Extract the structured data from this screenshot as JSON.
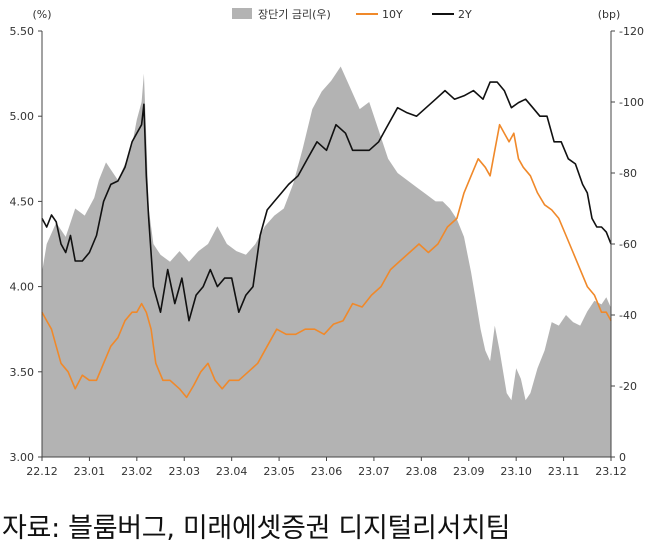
{
  "chart_data": {
    "type": "line",
    "units_left": "(%)",
    "units_right": "(bp)",
    "left_axis": {
      "ylim": [
        3.0,
        5.5
      ],
      "ticks": [
        "3.00",
        "3.50",
        "4.00",
        "4.50",
        "5.00",
        "5.50"
      ]
    },
    "right_axis": {
      "ylim": [
        0,
        -120
      ],
      "inverted": true,
      "ticks": [
        "0",
        "-20",
        "-40",
        "-60",
        "-80",
        "-100",
        "-120"
      ]
    },
    "x_ticks": [
      "22.12",
      "23.01",
      "23.02",
      "23.03",
      "23.04",
      "23.05",
      "23.06",
      "23.07",
      "23.08",
      "23.09",
      "23.10",
      "23.11",
      "23.12"
    ],
    "legend": {
      "placement": "top-center"
    },
    "colors": {
      "spread": "#b3b3b3",
      "y10": "#f0892a",
      "y2": "#111111"
    },
    "series": [
      {
        "name": "장단기 금리(우)",
        "axis": "right",
        "kind": "area",
        "points": [
          [
            0.0,
            -52
          ],
          [
            0.1,
            -60
          ],
          [
            0.3,
            -66
          ],
          [
            0.5,
            -62
          ],
          [
            0.7,
            -70
          ],
          [
            0.9,
            -68
          ],
          [
            1.1,
            -73
          ],
          [
            1.2,
            -78
          ],
          [
            1.35,
            -83
          ],
          [
            1.5,
            -80
          ],
          [
            1.6,
            -78
          ],
          [
            1.8,
            -84
          ],
          [
            1.9,
            -88
          ],
          [
            2.0,
            -95
          ],
          [
            2.1,
            -100
          ],
          [
            2.15,
            -108
          ],
          [
            2.2,
            -90
          ],
          [
            2.25,
            -70
          ],
          [
            2.35,
            -60
          ],
          [
            2.5,
            -57
          ],
          [
            2.7,
            -55
          ],
          [
            2.9,
            -58
          ],
          [
            3.1,
            -55
          ],
          [
            3.3,
            -58
          ],
          [
            3.5,
            -60
          ],
          [
            3.7,
            -65
          ],
          [
            3.9,
            -60
          ],
          [
            4.1,
            -58
          ],
          [
            4.3,
            -57
          ],
          [
            4.5,
            -60
          ],
          [
            4.7,
            -65
          ],
          [
            4.9,
            -68
          ],
          [
            5.1,
            -70
          ],
          [
            5.3,
            -77
          ],
          [
            5.5,
            -87
          ],
          [
            5.7,
            -98
          ],
          [
            5.9,
            -103
          ],
          [
            6.1,
            -106
          ],
          [
            6.3,
            -110
          ],
          [
            6.5,
            -104
          ],
          [
            6.7,
            -98
          ],
          [
            6.9,
            -100
          ],
          [
            7.1,
            -92
          ],
          [
            7.3,
            -84
          ],
          [
            7.5,
            -80
          ],
          [
            7.7,
            -78
          ],
          [
            7.9,
            -76
          ],
          [
            8.1,
            -74
          ],
          [
            8.3,
            -72
          ],
          [
            8.45,
            -72
          ],
          [
            8.6,
            -70
          ],
          [
            8.75,
            -67
          ],
          [
            8.9,
            -62
          ],
          [
            9.05,
            -52
          ],
          [
            9.15,
            -44
          ],
          [
            9.25,
            -36
          ],
          [
            9.35,
            -30
          ],
          [
            9.45,
            -27
          ],
          [
            9.55,
            -37
          ],
          [
            9.65,
            -30
          ],
          [
            9.8,
            -18
          ],
          [
            9.9,
            -16
          ],
          [
            10.0,
            -25
          ],
          [
            10.1,
            -22
          ],
          [
            10.2,
            -16
          ],
          [
            10.3,
            -18
          ],
          [
            10.45,
            -25
          ],
          [
            10.6,
            -30
          ],
          [
            10.75,
            -38
          ],
          [
            10.9,
            -37
          ],
          [
            11.05,
            -40
          ],
          [
            11.2,
            -38
          ],
          [
            11.35,
            -37
          ],
          [
            11.5,
            -41
          ],
          [
            11.65,
            -44
          ],
          [
            11.8,
            -43
          ],
          [
            11.9,
            -45
          ],
          [
            12.0,
            -42
          ]
        ]
      },
      {
        "name": "10Y",
        "axis": "left",
        "kind": "line",
        "points": [
          [
            0.0,
            3.85
          ],
          [
            0.1,
            3.8
          ],
          [
            0.2,
            3.75
          ],
          [
            0.3,
            3.65
          ],
          [
            0.4,
            3.55
          ],
          [
            0.55,
            3.5
          ],
          [
            0.7,
            3.4
          ],
          [
            0.85,
            3.48
          ],
          [
            1.0,
            3.45
          ],
          [
            1.15,
            3.45
          ],
          [
            1.3,
            3.55
          ],
          [
            1.45,
            3.65
          ],
          [
            1.6,
            3.7
          ],
          [
            1.75,
            3.8
          ],
          [
            1.9,
            3.85
          ],
          [
            2.0,
            3.85
          ],
          [
            2.1,
            3.9
          ],
          [
            2.2,
            3.85
          ],
          [
            2.3,
            3.75
          ],
          [
            2.4,
            3.55
          ],
          [
            2.55,
            3.45
          ],
          [
            2.7,
            3.45
          ],
          [
            2.9,
            3.4
          ],
          [
            3.05,
            3.35
          ],
          [
            3.2,
            3.42
          ],
          [
            3.35,
            3.5
          ],
          [
            3.5,
            3.55
          ],
          [
            3.65,
            3.45
          ],
          [
            3.8,
            3.4
          ],
          [
            3.95,
            3.45
          ],
          [
            4.15,
            3.45
          ],
          [
            4.35,
            3.5
          ],
          [
            4.55,
            3.55
          ],
          [
            4.75,
            3.65
          ],
          [
            4.95,
            3.75
          ],
          [
            5.15,
            3.72
          ],
          [
            5.35,
            3.72
          ],
          [
            5.55,
            3.75
          ],
          [
            5.75,
            3.75
          ],
          [
            5.95,
            3.72
          ],
          [
            6.15,
            3.78
          ],
          [
            6.35,
            3.8
          ],
          [
            6.55,
            3.9
          ],
          [
            6.75,
            3.88
          ],
          [
            6.95,
            3.95
          ],
          [
            7.15,
            4.0
          ],
          [
            7.35,
            4.1
          ],
          [
            7.55,
            4.15
          ],
          [
            7.75,
            4.2
          ],
          [
            7.95,
            4.25
          ],
          [
            8.15,
            4.2
          ],
          [
            8.35,
            4.25
          ],
          [
            8.55,
            4.35
          ],
          [
            8.75,
            4.4
          ],
          [
            8.9,
            4.55
          ],
          [
            9.05,
            4.65
          ],
          [
            9.2,
            4.75
          ],
          [
            9.35,
            4.7
          ],
          [
            9.45,
            4.65
          ],
          [
            9.55,
            4.8
          ],
          [
            9.65,
            4.95
          ],
          [
            9.75,
            4.9
          ],
          [
            9.85,
            4.85
          ],
          [
            9.95,
            4.9
          ],
          [
            10.05,
            4.75
          ],
          [
            10.15,
            4.7
          ],
          [
            10.3,
            4.65
          ],
          [
            10.45,
            4.55
          ],
          [
            10.6,
            4.48
          ],
          [
            10.75,
            4.45
          ],
          [
            10.9,
            4.4
          ],
          [
            11.05,
            4.3
          ],
          [
            11.2,
            4.2
          ],
          [
            11.35,
            4.1
          ],
          [
            11.5,
            4.0
          ],
          [
            11.65,
            3.95
          ],
          [
            11.8,
            3.85
          ],
          [
            11.9,
            3.85
          ],
          [
            12.0,
            3.8
          ]
        ]
      },
      {
        "name": "2Y",
        "axis": "left",
        "kind": "line",
        "points": [
          [
            0.0,
            4.4
          ],
          [
            0.1,
            4.35
          ],
          [
            0.2,
            4.42
          ],
          [
            0.3,
            4.38
          ],
          [
            0.4,
            4.25
          ],
          [
            0.5,
            4.2
          ],
          [
            0.6,
            4.3
          ],
          [
            0.7,
            4.15
          ],
          [
            0.85,
            4.15
          ],
          [
            1.0,
            4.2
          ],
          [
            1.15,
            4.3
          ],
          [
            1.3,
            4.5
          ],
          [
            1.45,
            4.6
          ],
          [
            1.6,
            4.62
          ],
          [
            1.75,
            4.7
          ],
          [
            1.9,
            4.85
          ],
          [
            2.0,
            4.9
          ],
          [
            2.1,
            4.95
          ],
          [
            2.15,
            5.07
          ],
          [
            2.2,
            4.65
          ],
          [
            2.25,
            4.4
          ],
          [
            2.35,
            4.0
          ],
          [
            2.5,
            3.85
          ],
          [
            2.65,
            4.1
          ],
          [
            2.8,
            3.9
          ],
          [
            2.95,
            4.05
          ],
          [
            3.1,
            3.8
          ],
          [
            3.25,
            3.95
          ],
          [
            3.4,
            4.0
          ],
          [
            3.55,
            4.1
          ],
          [
            3.7,
            4.0
          ],
          [
            3.85,
            4.05
          ],
          [
            4.0,
            4.05
          ],
          [
            4.15,
            3.85
          ],
          [
            4.3,
            3.95
          ],
          [
            4.45,
            4.0
          ],
          [
            4.6,
            4.3
          ],
          [
            4.75,
            4.45
          ],
          [
            4.9,
            4.5
          ],
          [
            5.05,
            4.55
          ],
          [
            5.2,
            4.6
          ],
          [
            5.4,
            4.65
          ],
          [
            5.6,
            4.75
          ],
          [
            5.8,
            4.85
          ],
          [
            6.0,
            4.8
          ],
          [
            6.2,
            4.95
          ],
          [
            6.4,
            4.9
          ],
          [
            6.55,
            4.8
          ],
          [
            6.7,
            4.8
          ],
          [
            6.9,
            4.8
          ],
          [
            7.1,
            4.85
          ],
          [
            7.3,
            4.95
          ],
          [
            7.5,
            5.05
          ],
          [
            7.7,
            5.02
          ],
          [
            7.9,
            5.0
          ],
          [
            8.1,
            5.05
          ],
          [
            8.3,
            5.1
          ],
          [
            8.5,
            5.15
          ],
          [
            8.7,
            5.1
          ],
          [
            8.9,
            5.12
          ],
          [
            9.1,
            5.15
          ],
          [
            9.3,
            5.1
          ],
          [
            9.45,
            5.2
          ],
          [
            9.6,
            5.2
          ],
          [
            9.75,
            5.15
          ],
          [
            9.9,
            5.05
          ],
          [
            10.05,
            5.08
          ],
          [
            10.2,
            5.1
          ],
          [
            10.35,
            5.05
          ],
          [
            10.5,
            5.0
          ],
          [
            10.65,
            5.0
          ],
          [
            10.8,
            4.85
          ],
          [
            10.95,
            4.85
          ],
          [
            11.1,
            4.75
          ],
          [
            11.25,
            4.72
          ],
          [
            11.4,
            4.6
          ],
          [
            11.5,
            4.55
          ],
          [
            11.6,
            4.4
          ],
          [
            11.7,
            4.35
          ],
          [
            11.8,
            4.35
          ],
          [
            11.9,
            4.32
          ],
          [
            12.0,
            4.25
          ]
        ]
      }
    ]
  },
  "source_note": "자료: 블룸버그, 미래에셋증권 디지털리서치팀"
}
